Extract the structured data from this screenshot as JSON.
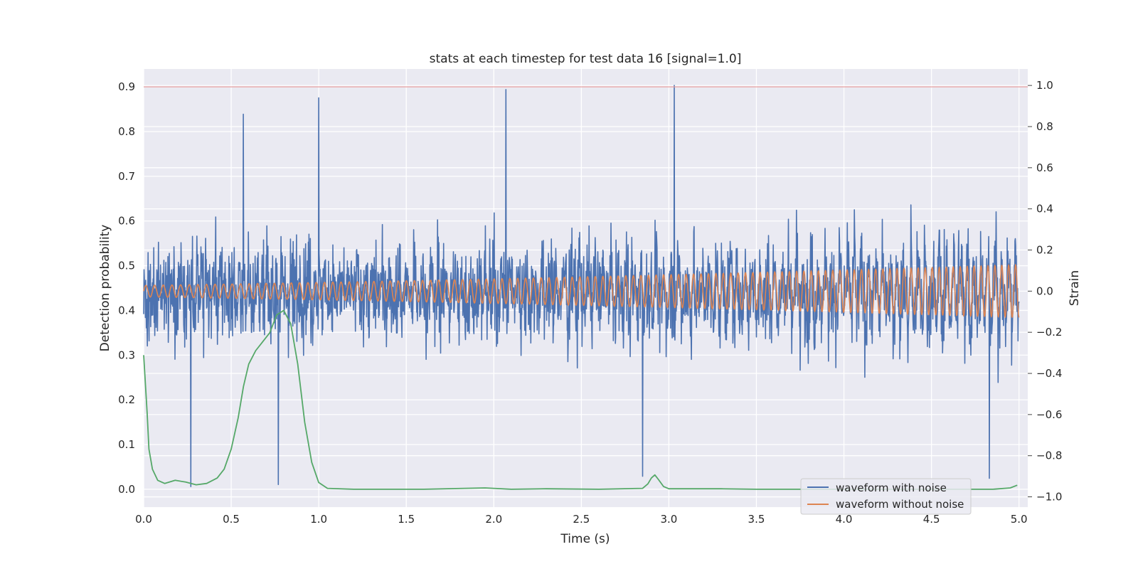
{
  "chart_data": {
    "type": "line",
    "title": "stats at each timestep for test data 16 [signal=1.0]",
    "xlabel": "Time (s)",
    "ylabel_left": "Detection probability",
    "ylabel_right": "Strain",
    "xlim": [
      0.0,
      5.05
    ],
    "ylim_left": [
      -0.04,
      0.94
    ],
    "ylim_right": [
      -1.05,
      1.08
    ],
    "x_ticks": [
      "0.0",
      "0.5",
      "1.0",
      "1.5",
      "2.0",
      "2.5",
      "3.0",
      "3.5",
      "4.0",
      "4.5",
      "5.0"
    ],
    "y_left_ticks": [
      "0.0",
      "0.1",
      "0.2",
      "0.3",
      "0.4",
      "0.5",
      "0.6",
      "0.7",
      "0.8",
      "0.9"
    ],
    "y_right_ticks": [
      "−1.0",
      "−0.8",
      "−0.6",
      "−0.4",
      "−0.2",
      "0.0",
      "0.2",
      "0.4",
      "0.6",
      "0.8",
      "1.0"
    ],
    "grid": true,
    "legend_position": "lower-right",
    "threshold": {
      "y": 0.9,
      "color": "#e8a0a0"
    },
    "series": [
      {
        "name": "waveform with noise",
        "axis": "right",
        "color": "#4c72b0",
        "description": "noisy strain, centered near 0.0, amplitude roughly ±0.45 with spikes reaching about 1.0 and -0.95",
        "notable_points": [
          {
            "x": 0.57,
            "y": 0.86
          },
          {
            "x": 1.0,
            "y": 0.94
          },
          {
            "x": 2.07,
            "y": 0.98
          },
          {
            "x": 3.03,
            "y": 1.0
          },
          {
            "x": 0.27,
            "y": -0.95
          },
          {
            "x": 0.77,
            "y": -0.94
          },
          {
            "x": 2.85,
            "y": -0.9
          },
          {
            "x": 4.83,
            "y": -0.91
          }
        ]
      },
      {
        "name": "waveform without noise",
        "axis": "right",
        "color": "#dd8452",
        "description": "chirp sinusoid, amplitude about 0.03 at t=0 growing to about 0.1 at t=5"
      },
      {
        "axis": "left",
        "color": "#55a868",
        "points": [
          [
            0.0,
            0.3
          ],
          [
            0.02,
            0.17
          ],
          [
            0.03,
            0.09
          ],
          [
            0.05,
            0.045
          ],
          [
            0.08,
            0.02
          ],
          [
            0.12,
            0.013
          ],
          [
            0.18,
            0.02
          ],
          [
            0.24,
            0.016
          ],
          [
            0.3,
            0.01
          ],
          [
            0.36,
            0.013
          ],
          [
            0.42,
            0.025
          ],
          [
            0.46,
            0.045
          ],
          [
            0.5,
            0.09
          ],
          [
            0.54,
            0.16
          ],
          [
            0.57,
            0.23
          ],
          [
            0.6,
            0.28
          ],
          [
            0.64,
            0.31
          ],
          [
            0.68,
            0.33
          ],
          [
            0.72,
            0.35
          ],
          [
            0.76,
            0.39
          ],
          [
            0.8,
            0.4
          ],
          [
            0.84,
            0.37
          ],
          [
            0.88,
            0.28
          ],
          [
            0.92,
            0.15
          ],
          [
            0.96,
            0.06
          ],
          [
            1.0,
            0.015
          ],
          [
            1.05,
            0.002
          ],
          [
            1.2,
            0.0
          ],
          [
            1.6,
            0.0
          ],
          [
            1.95,
            0.003
          ],
          [
            2.1,
            0.0
          ],
          [
            2.3,
            0.001
          ],
          [
            2.6,
            0.0
          ],
          [
            2.85,
            0.002
          ],
          [
            2.88,
            0.012
          ],
          [
            2.9,
            0.025
          ],
          [
            2.92,
            0.032
          ],
          [
            2.94,
            0.022
          ],
          [
            2.97,
            0.006
          ],
          [
            3.0,
            0.001
          ],
          [
            3.3,
            0.001
          ],
          [
            3.5,
            0.0
          ],
          [
            4.0,
            0.0
          ],
          [
            4.5,
            0.0
          ],
          [
            4.85,
            0.0
          ],
          [
            4.95,
            0.003
          ],
          [
            4.99,
            0.009
          ]
        ]
      }
    ]
  }
}
